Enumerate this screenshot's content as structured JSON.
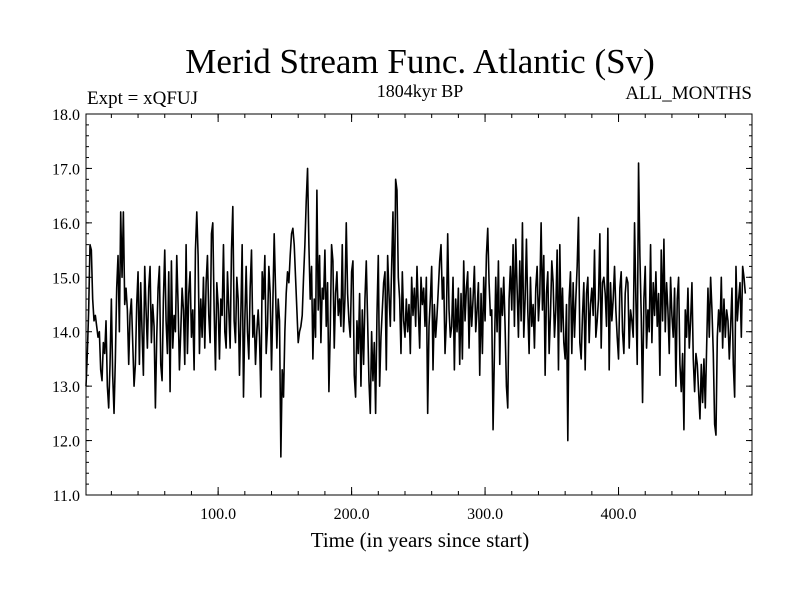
{
  "chart_data": {
    "type": "line",
    "title": "Merid Stream Func. Atlantic (Sv)",
    "subtitle_left": "Expt = xQFUJ",
    "subtitle_center": "1804kyr BP",
    "subtitle_right": "ALL_MONTHS",
    "xlabel": "Time (in years since start)",
    "ylabel": "",
    "xlim": [
      1,
      500
    ],
    "ylim": [
      11.0,
      18.0
    ],
    "x_ticks": [
      100,
      200,
      300,
      400
    ],
    "x_tick_labels": [
      "100.0",
      "200.0",
      "300.0",
      "400.0"
    ],
    "y_ticks": [
      11,
      12,
      13,
      14,
      15,
      16,
      17,
      18
    ],
    "y_tick_labels": [
      "11.0",
      "12.0",
      "13.0",
      "14.0",
      "15.0",
      "16.0",
      "17.0",
      "18.0"
    ],
    "grid": false,
    "line_color": "#000000",
    "series": [
      {
        "name": "Merid Stream Func. Atlantic",
        "x_start": 1,
        "x_step": 1,
        "values": [
          13.0,
          13.6,
          14.4,
          15.6,
          15.5,
          14.6,
          14.2,
          14.3,
          14.1,
          13.9,
          14.0,
          13.3,
          13.1,
          13.8,
          13.6,
          14.2,
          13.0,
          12.6,
          13.4,
          14.6,
          13.2,
          12.5,
          13.5,
          14.8,
          15.4,
          14.0,
          16.2,
          15.0,
          16.2,
          14.5,
          14.8,
          14.4,
          13.4,
          14.3,
          14.6,
          13.8,
          13.0,
          13.4,
          14.5,
          15.1,
          13.4,
          14.9,
          14.0,
          13.2,
          15.2,
          14.4,
          13.7,
          14.8,
          15.2,
          13.8,
          14.5,
          14.1,
          12.6,
          13.9,
          14.8,
          15.2,
          13.4,
          13.1,
          14.6,
          15.5,
          14.2,
          13.6,
          15.1,
          12.9,
          15.3,
          13.7,
          14.3,
          14.0,
          15.4,
          14.5,
          13.3,
          14.0,
          14.8,
          14.4,
          13.4,
          15.6,
          13.6,
          14.7,
          15.1,
          13.9,
          14.4,
          13.3,
          15.5,
          16.2,
          15.4,
          13.6,
          14.6,
          13.9,
          15.0,
          13.7,
          14.9,
          15.4,
          14.3,
          13.8,
          15.8,
          16.0,
          14.4,
          13.3,
          14.9,
          14.5,
          13.5,
          14.6,
          14.3,
          15.6,
          14.0,
          13.7,
          15.1,
          14.4,
          13.7,
          15.5,
          16.3,
          14.2,
          13.8,
          15.0,
          14.6,
          13.2,
          14.3,
          15.6,
          12.8,
          14.2,
          15.2,
          14.0,
          13.5,
          14.8,
          15.5,
          13.9,
          14.3,
          13.4,
          14.0,
          14.4,
          13.9,
          12.8,
          15.1,
          14.6,
          15.4,
          13.6,
          14.1,
          15.2,
          14.7,
          13.3,
          14.5,
          15.8,
          14.8,
          13.7,
          14.6,
          14.2,
          11.7,
          13.3,
          12.8,
          14.0,
          14.7,
          15.1,
          14.9,
          15.4,
          15.8,
          15.9,
          15.6,
          15.0,
          14.4,
          13.8,
          14.0,
          14.1,
          14.3,
          15.0,
          15.6,
          16.4,
          17.0,
          15.6,
          14.6,
          15.2,
          13.5,
          14.6,
          13.9,
          16.6,
          14.4,
          15.4,
          13.8,
          14.8,
          14.6,
          15.5,
          14.1,
          14.9,
          12.9,
          14.0,
          15.6,
          15.3,
          13.7,
          14.7,
          15.1,
          14.3,
          14.6,
          14.1,
          15.6,
          14.0,
          14.6,
          16.0,
          14.7,
          14.2,
          13.9,
          15.1,
          15.3,
          13.2,
          12.8,
          14.2,
          13.6,
          14.7,
          13.0,
          14.4,
          13.4,
          14.6,
          15.3,
          14.2,
          13.1,
          12.5,
          14.0,
          13.1,
          13.8,
          12.5,
          14.3,
          15.4,
          13.0,
          13.9,
          14.4,
          14.9,
          15.1,
          13.3,
          15.4,
          14.7,
          14.1,
          15.2,
          16.2,
          14.2,
          16.8,
          16.6,
          15.0,
          14.6,
          13.6,
          15.1,
          14.2,
          13.9,
          14.6,
          14.0,
          14.5,
          13.6,
          15.0,
          14.3,
          14.8,
          14.1,
          15.2,
          14.4,
          13.7,
          15.0,
          14.5,
          14.8,
          14.1,
          15.0,
          12.5,
          14.1,
          14.6,
          15.2,
          13.3,
          14.5,
          13.9,
          14.3,
          14.8,
          15.3,
          15.6,
          14.6,
          15.0,
          13.6,
          14.2,
          15.8,
          14.4,
          13.9,
          14.1,
          15.0,
          13.3,
          14.6,
          14.0,
          14.8,
          13.4,
          14.7,
          13.5,
          15.3,
          14.2,
          14.8,
          15.1,
          13.7,
          14.8,
          14.1,
          14.6,
          15.2,
          14.0,
          14.4,
          14.9,
          13.2,
          14.7,
          13.6,
          15.0,
          14.2,
          15.4,
          15.9,
          14.9,
          14.3,
          14.4,
          12.2,
          13.6,
          15.0,
          14.0,
          15.3,
          13.4,
          14.8,
          14.3,
          15.0,
          14.1,
          13.0,
          12.6,
          14.6,
          15.2,
          14.4,
          15.6,
          14.1,
          15.7,
          14.8,
          13.9,
          15.3,
          14.2,
          16.0,
          13.9,
          14.6,
          15.7,
          14.4,
          13.6,
          15.0,
          14.1,
          14.5,
          13.7,
          14.8,
          15.2,
          14.2,
          14.7,
          16.0,
          14.4,
          15.4,
          13.2,
          14.7,
          15.1,
          13.6,
          14.3,
          15.3,
          14.9,
          13.9,
          14.4,
          15.5,
          13.3,
          15.6,
          14.0,
          14.8,
          13.8,
          13.5,
          14.5,
          12.0,
          14.6,
          15.1,
          13.6,
          14.9,
          13.9,
          14.6,
          15.2,
          16.1,
          13.8,
          13.5,
          14.3,
          14.9,
          13.3,
          14.7,
          15.0,
          13.8,
          14.5,
          14.8,
          14.3,
          15.5,
          13.9,
          14.2,
          14.6,
          15.8,
          13.7,
          14.9,
          15.0,
          14.7,
          14.1,
          15.9,
          13.3,
          14.9,
          14.2,
          14.6,
          15.2,
          14.4,
          13.9,
          13.5,
          14.8,
          15.1,
          14.0,
          13.6,
          14.7,
          15.0,
          14.9,
          13.7,
          14.4,
          14.2,
          13.9,
          16.0,
          14.6,
          13.4,
          17.1,
          15.4,
          14.3,
          12.7,
          14.6,
          15.2,
          13.7,
          14.4,
          14.0,
          15.6,
          13.8,
          14.9,
          14.3,
          15.1,
          14.1,
          14.7,
          13.2,
          15.5,
          14.2,
          15.7,
          14.0,
          14.9,
          14.4,
          13.6,
          15.0,
          14.3,
          13.9,
          14.8,
          13.0,
          14.6,
          15.0,
          13.4,
          12.9,
          13.6,
          12.2,
          14.4,
          13.9,
          14.8,
          13.7,
          14.2,
          14.9,
          13.5,
          12.9,
          13.6,
          13.4,
          12.9,
          12.4,
          13.4,
          12.7,
          13.5,
          12.6,
          13.7,
          14.8,
          13.9,
          15.0,
          14.4,
          13.6,
          12.3,
          12.1,
          13.9,
          14.4,
          14.0,
          15.0,
          13.7,
          14.6,
          13.9,
          14.4,
          14.2,
          13.5,
          14.1,
          14.8,
          13.4,
          12.8,
          15.2,
          14.2,
          14.6,
          14.9,
          13.9,
          15.2,
          15.0,
          14.7
        ]
      }
    ]
  }
}
